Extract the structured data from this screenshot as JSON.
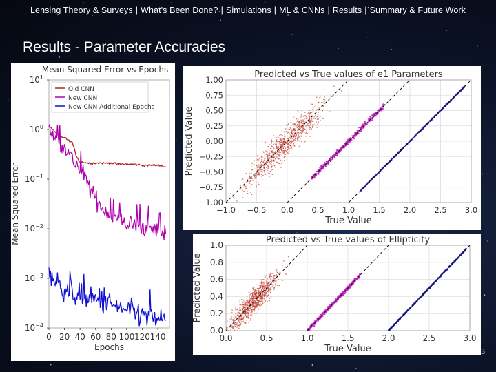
{
  "nav": [
    "Lensing Theory & Surveys",
    "What's Been Done?",
    "Simulations",
    "ML & CNNs",
    "Results",
    "Summary & Future Work"
  ],
  "slide_title": "Results - Parameter Accuracies",
  "page_number": "13",
  "chart_data": [
    {
      "type": "line",
      "title": "Mean Squared Error vs Epochs",
      "xlabel": "Epochs",
      "ylabel": "Mean Squared Error",
      "yscale": "log",
      "ylim": [
        0.0001,
        10
      ],
      "xticks": [
        "0",
        "20",
        "40",
        "60",
        "80",
        "100",
        "120",
        "140"
      ],
      "yticks": [
        "10^1",
        "10^0",
        "10^-1",
        "10^-2",
        "10^-3",
        "10^-4"
      ],
      "legend_position": "top-left",
      "series": [
        {
          "name": "Old CNN",
          "color": "#b22222",
          "x": [
            0,
            5,
            10,
            15,
            20,
            25,
            30,
            35,
            40,
            45,
            50,
            60,
            70,
            80,
            90,
            100,
            110,
            120,
            130,
            140,
            150
          ],
          "y": [
            1.2,
            1.0,
            0.8,
            0.7,
            0.7,
            0.6,
            0.55,
            0.3,
            0.22,
            0.22,
            0.21,
            0.21,
            0.21,
            0.21,
            0.2,
            0.2,
            0.2,
            0.19,
            0.19,
            0.19,
            0.18
          ]
        },
        {
          "name": "New CNN",
          "color": "#b000b0",
          "x": [
            0,
            5,
            10,
            15,
            20,
            25,
            30,
            35,
            40,
            45,
            50,
            60,
            70,
            80,
            90,
            100,
            110,
            120,
            130,
            140,
            150
          ],
          "y": [
            1.0,
            0.8,
            0.6,
            0.5,
            0.5,
            0.35,
            0.25,
            0.2,
            0.15,
            0.12,
            0.08,
            0.04,
            0.025,
            0.018,
            0.015,
            0.013,
            0.012,
            0.011,
            0.01,
            0.009,
            0.008
          ]
        },
        {
          "name": "New CNN Additional Epochs",
          "color": "#1010d0",
          "x": [
            0,
            5,
            10,
            15,
            20,
            25,
            30,
            40,
            50,
            60,
            70,
            80,
            90,
            100,
            110,
            120,
            130,
            140,
            150
          ],
          "y": [
            0.0015,
            0.001,
            0.0008,
            0.0007,
            0.0006,
            0.00055,
            0.0005,
            0.00045,
            0.0004,
            0.00035,
            0.00032,
            0.0003,
            0.00025,
            0.00022,
            0.0002,
            0.00018,
            0.00016,
            0.00015,
            0.00014
          ]
        }
      ]
    },
    {
      "type": "scatter",
      "title": "Predicted vs True values of e1 Parameters",
      "xlabel": "True Value",
      "ylabel": "Predicted Value",
      "xlim": [
        -1.0,
        3.0
      ],
      "ylim": [
        -1.0,
        1.0
      ],
      "xticks": [
        "−1.0",
        "−0.5",
        "0.0",
        "0.5",
        "1.0",
        "1.5",
        "2.0",
        "2.5",
        "3.0"
      ],
      "yticks": [
        "1.00",
        "0.75",
        "0.50",
        "0.25",
        "0.00",
        "−0.25",
        "−0.50",
        "−0.75",
        "−1.00"
      ],
      "series": [
        {
          "color": "#c0392b",
          "x_range": [
            -0.8,
            0.7
          ],
          "offset": 0.0,
          "spread": 0.12
        },
        {
          "color": "#c020c0",
          "x_range": [
            0.4,
            1.6
          ],
          "offset": -1.0,
          "spread": 0.02
        },
        {
          "color": "#1a1a9a",
          "x_range": [
            1.2,
            2.9
          ],
          "offset": -2.0,
          "spread": 0.005
        }
      ]
    },
    {
      "type": "scatter",
      "title": "Predicted vs True values of Ellipticity",
      "xlabel": "True Value",
      "ylabel": "Predicted Value",
      "xlim": [
        0.0,
        3.0
      ],
      "ylim": [
        0.0,
        1.0
      ],
      "xticks": [
        "0.0",
        "0.5",
        "1.0",
        "1.5",
        "2.0",
        "2.5",
        "3.0"
      ],
      "yticks": [
        "1.0",
        "0.8",
        "0.6",
        "0.4",
        "0.2",
        "0.0"
      ],
      "series": [
        {
          "color": "#c0392b",
          "x_range": [
            0.0,
            0.7
          ],
          "offset": 0.0,
          "spread": 0.07
        },
        {
          "color": "#c020c0",
          "x_range": [
            1.0,
            1.65
          ],
          "offset": -1.0,
          "spread": 0.012
        },
        {
          "color": "#1a1a9a",
          "x_range": [
            2.0,
            2.95
          ],
          "offset": -2.0,
          "spread": 0.004
        }
      ]
    }
  ]
}
